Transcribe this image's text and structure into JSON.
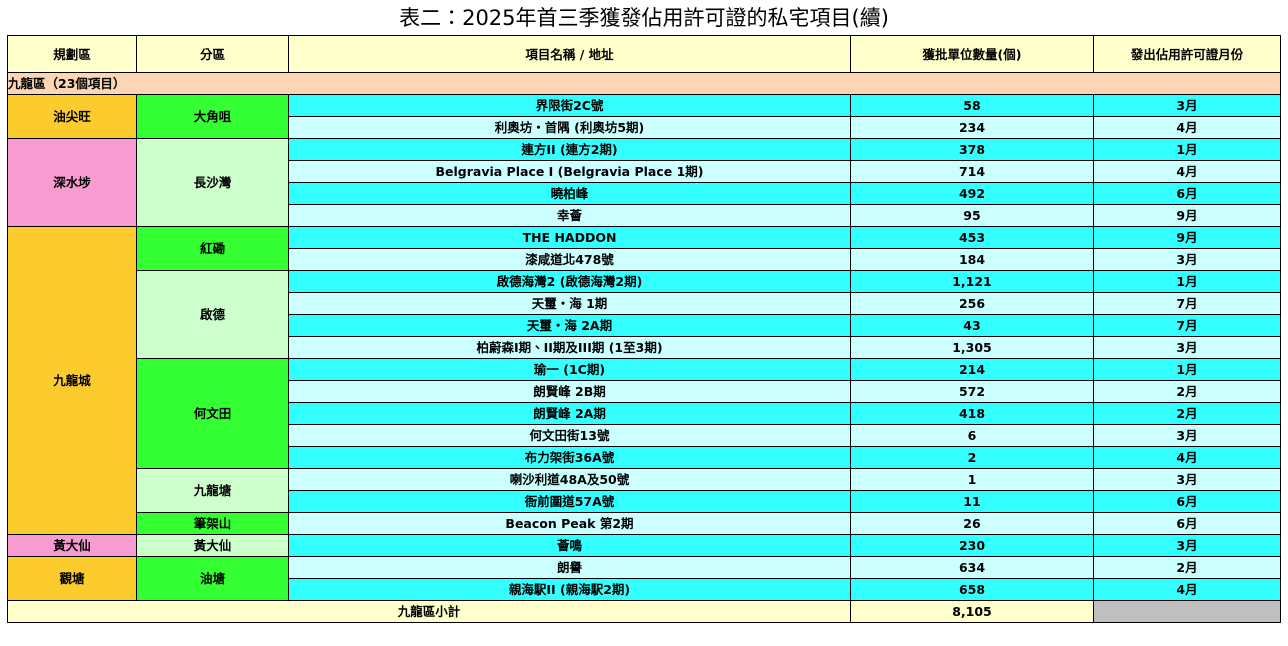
{
  "title": "表二：2025年首三季獲發佔用許可證的私宅項目(續)",
  "table": {
    "headers": [
      "規劃區",
      "分區",
      "項目名稱 / 地址",
      "獲批單位數量(個)",
      "發出佔用許可證月份"
    ],
    "section": "九龍區（23個項目）",
    "districts": [
      {
        "name": "油尖旺",
        "color": "#fccb2e",
        "subdistricts": [
          {
            "name": "大角咀",
            "color": "#33ff33",
            "projects": [
              {
                "name": "界限街2C號",
                "units": "58",
                "month": "3月"
              },
              {
                "name": "利奧坊・首隅 (利奧坊5期)",
                "units": "234",
                "month": "4月"
              }
            ]
          }
        ]
      },
      {
        "name": "深水埗",
        "color": "#f79bd1",
        "subdistricts": [
          {
            "name": "長沙灣",
            "color": "#ccffcc",
            "projects": [
              {
                "name": "連方II (連方2期)",
                "units": "378",
                "month": "1月"
              },
              {
                "name": "Belgravia Place I (Belgravia Place 1期)",
                "units": "714",
                "month": "4月"
              },
              {
                "name": "曉柏峰",
                "units": "492",
                "month": "6月"
              },
              {
                "name": "幸薈",
                "units": "95",
                "month": "9月"
              }
            ]
          }
        ]
      },
      {
        "name": "九龍城",
        "color": "#fccb2e",
        "subdistricts": [
          {
            "name": "紅磡",
            "color": "#33ff33",
            "projects": [
              {
                "name": "THE HADDON",
                "units": "453",
                "month": "9月"
              },
              {
                "name": "漆咸道北478號",
                "units": "184",
                "month": "3月"
              }
            ]
          },
          {
            "name": "啟德",
            "color": "#ccffcc",
            "projects": [
              {
                "name": "啟德海灣2 (啟德海灣2期)",
                "units": "1,121",
                "month": "1月"
              },
              {
                "name": "天璽・海 1期",
                "units": "256",
                "month": "7月"
              },
              {
                "name": "天璽・海 2A期",
                "units": "43",
                "month": "7月"
              },
              {
                "name": "柏蔚森I期、II期及III期 (1至3期)",
                "units": "1,305",
                "month": "3月"
              }
            ]
          },
          {
            "name": "何文田",
            "color": "#33ff33",
            "projects": [
              {
                "name": "瑜一 (1C期)",
                "units": "214",
                "month": "1月"
              },
              {
                "name": "朗賢峰 2B期",
                "units": "572",
                "month": "2月"
              },
              {
                "name": "朗賢峰 2A期",
                "units": "418",
                "month": "2月"
              },
              {
                "name": "何文田街13號",
                "units": "6",
                "month": "3月"
              },
              {
                "name": "布力架街36A號",
                "units": "2",
                "month": "4月"
              }
            ]
          },
          {
            "name": "九龍塘",
            "color": "#ccffcc",
            "projects": [
              {
                "name": "喇沙利道48A及50號",
                "units": "1",
                "month": "3月"
              },
              {
                "name": "衙前圍道57A號",
                "units": "11",
                "month": "6月"
              }
            ]
          },
          {
            "name": "筆架山",
            "color": "#33ff33",
            "projects": [
              {
                "name": "Beacon Peak 第2期",
                "units": "26",
                "month": "6月"
              }
            ]
          }
        ]
      },
      {
        "name": "黃大仙",
        "color": "#f79bd1",
        "subdistricts": [
          {
            "name": "黃大仙",
            "color": "#ccffcc",
            "projects": [
              {
                "name": "薈鳴",
                "units": "230",
                "month": "3月"
              }
            ]
          }
        ]
      },
      {
        "name": "觀塘",
        "color": "#fccb2e",
        "subdistricts": [
          {
            "name": "油塘",
            "color": "#33ff33",
            "projects": [
              {
                "name": "朗譽",
                "units": "634",
                "month": "2月"
              },
              {
                "name": "親海駅II (親海駅2期)",
                "units": "658",
                "month": "4月"
              }
            ]
          }
        ]
      }
    ],
    "subtotal": {
      "label": "九龍區小計",
      "units": "8,105"
    }
  }
}
